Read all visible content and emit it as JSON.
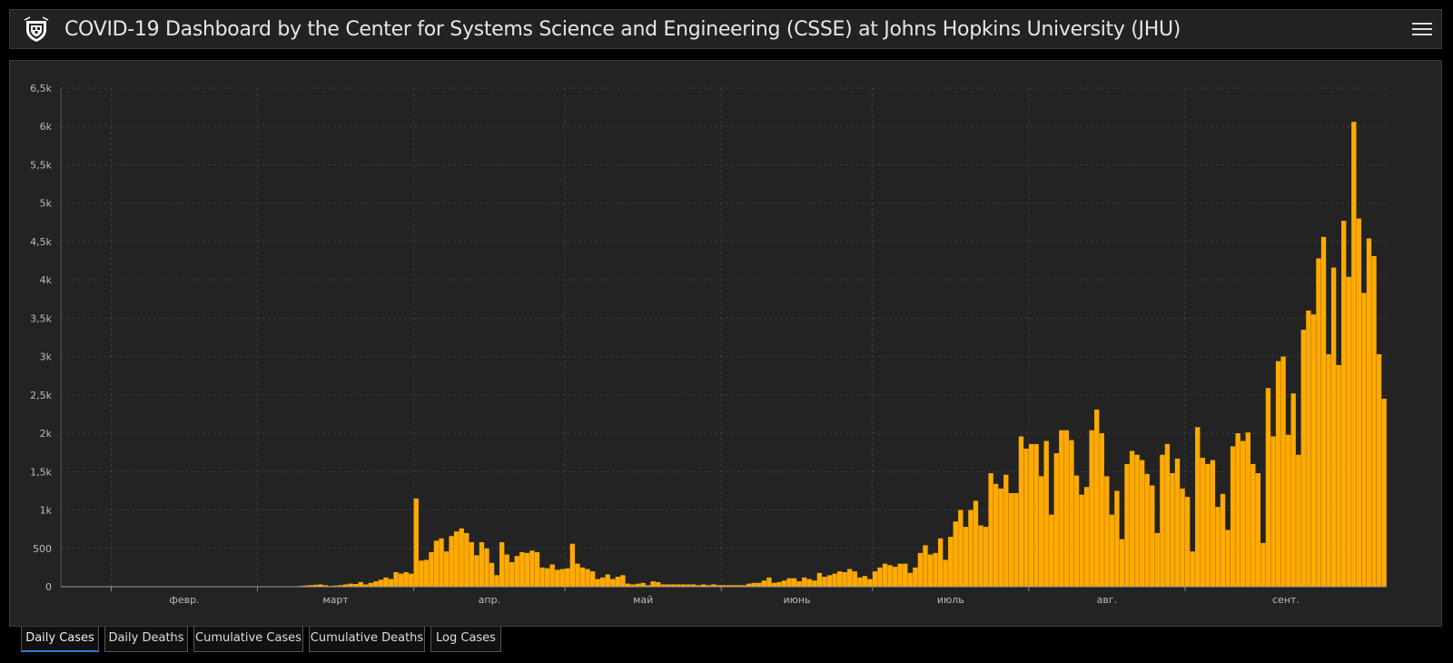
{
  "header": {
    "title": "COVID-19 Dashboard by the Center for Systems Science and Engineering (CSSE) at Johns Hopkins University (JHU)"
  },
  "tabs": [
    {
      "label": "Daily Cases",
      "active": true
    },
    {
      "label": "Daily Deaths",
      "active": false
    },
    {
      "label": "Cumulative Cases",
      "active": false
    },
    {
      "label": "Cumulative Deaths",
      "active": false
    },
    {
      "label": "Log Cases",
      "active": false
    }
  ],
  "chart_data": {
    "type": "bar",
    "title": "",
    "xlabel": "",
    "ylabel": "",
    "bar_color": "#ffaa00",
    "grid": true,
    "ylim": [
      0,
      6500
    ],
    "yticks": [
      0,
      500,
      1000,
      1500,
      2000,
      2500,
      3000,
      3500,
      4000,
      4500,
      5000,
      5500,
      6000,
      6500
    ],
    "ytick_labels": [
      "0",
      "500",
      "1k",
      "1,5k",
      "2k",
      "2,5k",
      "3k",
      "3,5k",
      "4k",
      "4,5k",
      "5k",
      "5,5k",
      "6k",
      "6,5k"
    ],
    "xtick_labels": [
      "февр.",
      "март",
      "апр.",
      "май",
      "июнь",
      "июль",
      "авг.",
      "сент."
    ],
    "x_start": "2020-01-22",
    "month_starts": [
      "2020-02-01",
      "2020-03-01",
      "2020-04-01",
      "2020-05-01",
      "2020-06-01",
      "2020-07-01",
      "2020-08-01",
      "2020-09-01"
    ],
    "values": [
      0,
      0,
      0,
      0,
      0,
      0,
      0,
      0,
      0,
      0,
      0,
      0,
      0,
      0,
      0,
      0,
      0,
      0,
      0,
      0,
      0,
      0,
      0,
      0,
      0,
      0,
      0,
      0,
      0,
      0,
      0,
      0,
      0,
      0,
      0,
      0,
      0,
      0,
      0,
      0,
      0,
      0,
      0,
      0,
      2,
      3,
      5,
      10,
      15,
      20,
      25,
      30,
      20,
      10,
      15,
      20,
      30,
      40,
      35,
      60,
      30,
      50,
      70,
      90,
      120,
      100,
      190,
      170,
      190,
      170,
      1150,
      340,
      350,
      450,
      600,
      630,
      460,
      660,
      720,
      760,
      700,
      580,
      410,
      580,
      500,
      310,
      150,
      580,
      420,
      320,
      400,
      450,
      440,
      470,
      450,
      250,
      240,
      290,
      220,
      230,
      240,
      560,
      300,
      250,
      230,
      200,
      100,
      120,
      160,
      100,
      130,
      150,
      40,
      30,
      40,
      50,
      20,
      70,
      60,
      30,
      30,
      30,
      30,
      30,
      30,
      30,
      20,
      30,
      20,
      30,
      20,
      20,
      20,
      20,
      20,
      20,
      40,
      50,
      50,
      80,
      120,
      50,
      60,
      80,
      110,
      110,
      70,
      120,
      100,
      80,
      180,
      130,
      150,
      170,
      200,
      190,
      230,
      200,
      120,
      140,
      100,
      200,
      250,
      300,
      280,
      260,
      300,
      300,
      180,
      250,
      440,
      540,
      420,
      440,
      630,
      350,
      650,
      850,
      1000,
      780,
      1000,
      1120,
      800,
      780,
      1480,
      1340,
      1280,
      1460,
      1220,
      1220,
      1960,
      1800,
      1860,
      1860,
      1440,
      1900,
      940,
      1740,
      2040,
      2040,
      1910,
      1450,
      1200,
      1300,
      2040,
      2310,
      2000,
      1440,
      940,
      1250,
      620,
      1600,
      1770,
      1720,
      1650,
      1470,
      1320,
      700,
      1720,
      1860,
      1480,
      1670,
      1280,
      1170,
      460,
      2080,
      1680,
      1600,
      1650,
      1040,
      1210,
      740,
      1830,
      2000,
      1900,
      2010,
      1600,
      1480,
      570,
      2590,
      1960,
      2940,
      3000,
      1980,
      2520,
      1720,
      3350,
      3600,
      3550,
      4280,
      4560,
      3030,
      4160,
      2890,
      4770,
      4040,
      6060,
      4800,
      3830,
      4540,
      4310,
      3030,
      2450
    ]
  }
}
